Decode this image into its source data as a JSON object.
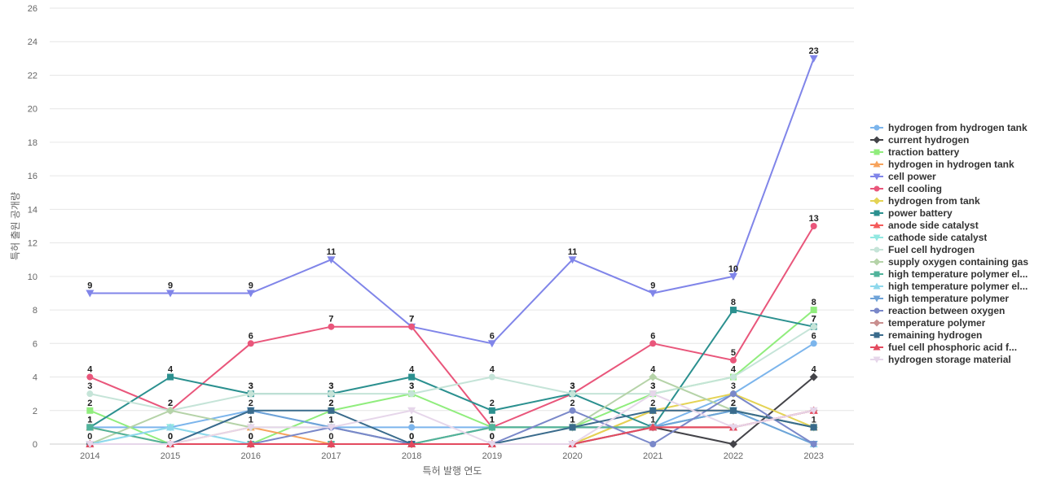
{
  "chart_data": {
    "type": "line",
    "xlabel": "특허 발행 연도",
    "ylabel": "특허 출원 공개량",
    "ylim": [
      0,
      26
    ],
    "yticks": [
      0,
      2,
      4,
      6,
      8,
      10,
      12,
      14,
      16,
      18,
      20,
      22,
      24,
      26
    ],
    "categories": [
      "2014",
      "2015",
      "2016",
      "2017",
      "2018",
      "2019",
      "2020",
      "2021",
      "2022",
      "2023"
    ],
    "grid": true,
    "legend_position": "right",
    "series": [
      {
        "name": "hydrogen from hydrogen tank",
        "color": "#7cb5ec",
        "marker": "circle",
        "values": [
          1,
          1,
          2,
          1,
          1,
          1,
          1,
          1,
          3,
          6
        ]
      },
      {
        "name": "current hydrogen",
        "color": "#434348",
        "marker": "diamond",
        "values": [
          0,
          0,
          0,
          0,
          0,
          1,
          1,
          1,
          0,
          4
        ]
      },
      {
        "name": "traction battery",
        "color": "#90ed7d",
        "marker": "square",
        "values": [
          2,
          0,
          0,
          2,
          3,
          1,
          1,
          3,
          4,
          8
        ]
      },
      {
        "name": "hydrogen in hydrogen tank",
        "color": "#f7a35c",
        "marker": "triangle",
        "values": [
          1,
          0,
          1,
          0,
          0,
          0,
          0,
          2,
          2,
          1
        ]
      },
      {
        "name": "cell power",
        "color": "#8085e9",
        "marker": "triangle-down",
        "values": [
          9,
          9,
          9,
          11,
          7,
          6,
          11,
          9,
          10,
          23
        ]
      },
      {
        "name": "cell cooling",
        "color": "#e9567b",
        "marker": "circle",
        "values": [
          4,
          2,
          6,
          7,
          7,
          1,
          3,
          6,
          5,
          13
        ]
      },
      {
        "name": "hydrogen from tank",
        "color": "#e4d354",
        "marker": "diamond",
        "values": [
          0,
          0,
          0,
          0,
          0,
          0,
          0,
          2,
          3,
          1
        ]
      },
      {
        "name": "power battery",
        "color": "#2b908f",
        "marker": "square",
        "values": [
          1,
          4,
          3,
          3,
          4,
          2,
          3,
          1,
          8,
          7
        ]
      },
      {
        "name": "anode side catalyst",
        "color": "#f45b5b",
        "marker": "triangle",
        "values": [
          0,
          0,
          0,
          0,
          0,
          0,
          0,
          1,
          1,
          2
        ]
      },
      {
        "name": "cathode side catalyst",
        "color": "#91e8e1",
        "marker": "triangle-down",
        "values": [
          0,
          1,
          0,
          0,
          0,
          0,
          0,
          1,
          2,
          0
        ]
      },
      {
        "name": "Fuel cell hydrogen",
        "color": "#c5e4d8",
        "marker": "circle",
        "values": [
          3,
          2,
          3,
          3,
          3,
          4,
          3,
          3,
          4,
          7
        ]
      },
      {
        "name": "supply oxygen containing gas",
        "color": "#b5d3a8",
        "marker": "diamond",
        "values": [
          0,
          2,
          1,
          1,
          0,
          1,
          1,
          4,
          2,
          1
        ]
      },
      {
        "name": "high temperature polymer el...",
        "color": "#50b39b",
        "marker": "square",
        "values": [
          1,
          0,
          0,
          0,
          0,
          1,
          1,
          1,
          2,
          1
        ]
      },
      {
        "name": "high temperature polymer el...",
        "color": "#8ed8ec",
        "marker": "triangle",
        "values": [
          0,
          1,
          0,
          0,
          0,
          0,
          0,
          1,
          2,
          0
        ]
      },
      {
        "name": "high temperature polymer",
        "color": "#6fa3d8",
        "marker": "triangle-down",
        "values": [
          0,
          0,
          2,
          1,
          0,
          0,
          0,
          1,
          2,
          0
        ]
      },
      {
        "name": "reaction between oxygen",
        "color": "#7a88c9",
        "marker": "circle",
        "values": [
          0,
          0,
          0,
          1,
          0,
          0,
          2,
          0,
          3,
          0
        ]
      },
      {
        "name": "temperature polymer",
        "color": "#c98f8f",
        "marker": "diamond",
        "values": [
          0,
          0,
          0,
          0,
          0,
          0,
          0,
          1,
          1,
          2
        ]
      },
      {
        "name": "remaining hydrogen",
        "color": "#3a6b8c",
        "marker": "square",
        "values": [
          0,
          0,
          2,
          2,
          0,
          0,
          1,
          2,
          2,
          1
        ]
      },
      {
        "name": "fuel cell phosphoric acid f...",
        "color": "#e34a5f",
        "marker": "triangle",
        "values": [
          0,
          0,
          0,
          0,
          0,
          0,
          0,
          1,
          1,
          2
        ]
      },
      {
        "name": "hydrogen storage material",
        "color": "#e6d6ea",
        "marker": "triangle-down",
        "values": [
          0,
          0,
          1,
          1,
          2,
          0,
          0,
          3,
          1,
          2
        ]
      }
    ],
    "data_labels": [
      {
        "series": 4,
        "points": [
          0,
          1,
          2,
          3,
          4,
          5,
          6,
          7,
          8,
          9
        ]
      },
      {
        "series": 5,
        "points": [
          0,
          1,
          2,
          3,
          4,
          5,
          6,
          7,
          8,
          9
        ]
      },
      {
        "series": 7,
        "points": [
          0,
          1,
          2,
          3,
          4,
          5,
          6,
          7,
          8,
          9
        ]
      },
      {
        "series": 10,
        "points": [
          0,
          2,
          3,
          4,
          5,
          6,
          7,
          8,
          9
        ]
      },
      {
        "series": 2,
        "points": [
          0,
          3,
          4,
          7,
          9
        ]
      },
      {
        "series": 0,
        "points": [
          0,
          4,
          9
        ]
      },
      {
        "series": 1,
        "points": [
          0,
          1,
          2,
          3,
          4,
          6,
          9
        ]
      },
      {
        "series": 11,
        "points": [
          1,
          2,
          3,
          5,
          6,
          7,
          8,
          9
        ]
      },
      {
        "series": 17,
        "points": [
          1,
          2,
          3,
          4,
          5,
          6,
          7,
          8
        ]
      },
      {
        "series": 15,
        "points": [
          2,
          3,
          5,
          6,
          8
        ]
      }
    ]
  }
}
